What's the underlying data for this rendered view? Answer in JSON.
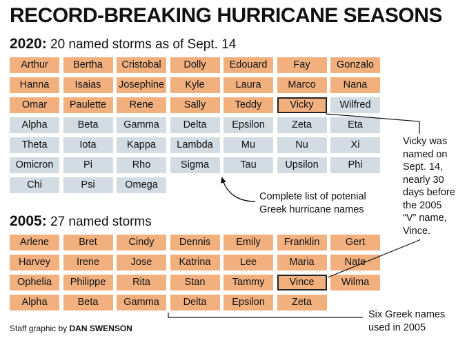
{
  "title": "RECORD-BREAKING HURRICANE SEASONS",
  "season_2020": {
    "year": "2020:",
    "description": "20 named storms as of Sept. 14",
    "storms": [
      {
        "name": "Arthur",
        "type": "named"
      },
      {
        "name": "Bertha",
        "type": "named"
      },
      {
        "name": "Cristobal",
        "type": "named"
      },
      {
        "name": "Dolly",
        "type": "named"
      },
      {
        "name": "Edouard",
        "type": "named"
      },
      {
        "name": "Fay",
        "type": "named"
      },
      {
        "name": "Gonzalo",
        "type": "named"
      },
      {
        "name": "Hanna",
        "type": "named"
      },
      {
        "name": "Isaias",
        "type": "named"
      },
      {
        "name": "Josephine",
        "type": "named"
      },
      {
        "name": "Kyle",
        "type": "named"
      },
      {
        "name": "Laura",
        "type": "named"
      },
      {
        "name": "Marco",
        "type": "named"
      },
      {
        "name": "Nana",
        "type": "named"
      },
      {
        "name": "Omar",
        "type": "named"
      },
      {
        "name": "Paulette",
        "type": "named"
      },
      {
        "name": "Rene",
        "type": "named"
      },
      {
        "name": "Sally",
        "type": "named"
      },
      {
        "name": "Teddy",
        "type": "named"
      },
      {
        "name": "Vicky",
        "type": "named",
        "highlight": true
      },
      {
        "name": "Wilfred",
        "type": "greek"
      },
      {
        "name": "Alpha",
        "type": "greek"
      },
      {
        "name": "Beta",
        "type": "greek"
      },
      {
        "name": "Gamma",
        "type": "greek"
      },
      {
        "name": "Delta",
        "type": "greek"
      },
      {
        "name": "Epsilon",
        "type": "greek"
      },
      {
        "name": "Zeta",
        "type": "greek"
      },
      {
        "name": "Eta",
        "type": "greek"
      },
      {
        "name": "Theta",
        "type": "greek"
      },
      {
        "name": "Iota",
        "type": "greek"
      },
      {
        "name": "Kappa",
        "type": "greek"
      },
      {
        "name": "Lambda",
        "type": "greek"
      },
      {
        "name": "Mu",
        "type": "greek"
      },
      {
        "name": "Nu",
        "type": "greek"
      },
      {
        "name": "Xi",
        "type": "greek"
      },
      {
        "name": "Omicron",
        "type": "greek"
      },
      {
        "name": "Pi",
        "type": "greek"
      },
      {
        "name": "Rho",
        "type": "greek"
      },
      {
        "name": "Sigma",
        "type": "greek"
      },
      {
        "name": "Tau",
        "type": "greek"
      },
      {
        "name": "Upsilon",
        "type": "greek"
      },
      {
        "name": "Phi",
        "type": "greek"
      },
      {
        "name": "Chi",
        "type": "greek"
      },
      {
        "name": "Psi",
        "type": "greek"
      },
      {
        "name": "Omega",
        "type": "greek"
      }
    ]
  },
  "season_2005": {
    "year": "2005:",
    "description": "27 named storms",
    "storms": [
      {
        "name": "Arlene",
        "type": "named"
      },
      {
        "name": "Bret",
        "type": "named"
      },
      {
        "name": "Cindy",
        "type": "named"
      },
      {
        "name": "Dennis",
        "type": "named"
      },
      {
        "name": "Emily",
        "type": "named"
      },
      {
        "name": "Franklin",
        "type": "named"
      },
      {
        "name": "Gert",
        "type": "named"
      },
      {
        "name": "Harvey",
        "type": "named"
      },
      {
        "name": "Irene",
        "type": "named"
      },
      {
        "name": "Jose",
        "type": "named"
      },
      {
        "name": "Katrina",
        "type": "named"
      },
      {
        "name": "Lee",
        "type": "named"
      },
      {
        "name": "Maria",
        "type": "named"
      },
      {
        "name": "Nate",
        "type": "named"
      },
      {
        "name": "Ophelia",
        "type": "named"
      },
      {
        "name": "Philippe",
        "type": "named"
      },
      {
        "name": "Rita",
        "type": "named"
      },
      {
        "name": "Stan",
        "type": "named"
      },
      {
        "name": "Tammy",
        "type": "named"
      },
      {
        "name": "Vince",
        "type": "named",
        "highlight": true
      },
      {
        "name": "Wilma",
        "type": "named"
      },
      {
        "name": "Alpha",
        "type": "named"
      },
      {
        "name": "Beta",
        "type": "named"
      },
      {
        "name": "Gamma",
        "type": "named"
      },
      {
        "name": "Delta",
        "type": "named"
      },
      {
        "name": "Epsilon",
        "type": "named"
      },
      {
        "name": "Zeta",
        "type": "named"
      }
    ]
  },
  "annotations": {
    "greek_list": [
      "Complete list of potenial",
      "Greek hurricane names"
    ],
    "vicky": [
      "Vicky was",
      "named on",
      "Sept. 14,",
      "nearly 30",
      "days before",
      "the 2005",
      "“V” name,",
      "Vince."
    ],
    "six_greek": [
      "Six Greek names",
      "used in 2005"
    ]
  },
  "credit": {
    "prefix": "Staff graphic by",
    "author": "DAN SWENSON"
  },
  "colors": {
    "named": "#f2b07f",
    "greek": "#d3dce2",
    "highlight_border": "#222222"
  }
}
